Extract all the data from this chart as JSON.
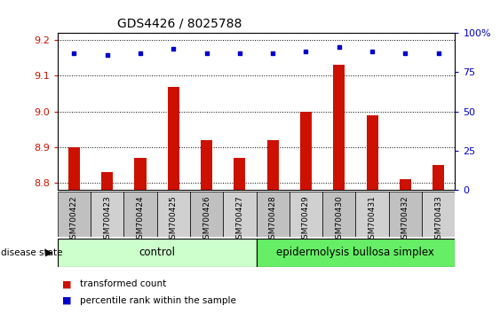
{
  "title": "GDS4426 / 8025788",
  "samples": [
    "GSM700422",
    "GSM700423",
    "GSM700424",
    "GSM700425",
    "GSM700426",
    "GSM700427",
    "GSM700428",
    "GSM700429",
    "GSM700430",
    "GSM700431",
    "GSM700432",
    "GSM700433"
  ],
  "bar_values": [
    8.9,
    8.83,
    8.87,
    9.07,
    8.92,
    8.87,
    8.92,
    9.0,
    9.13,
    8.99,
    8.81,
    8.85
  ],
  "percentile_values": [
    87,
    86,
    87,
    90,
    87,
    87,
    87,
    88,
    91,
    88,
    87,
    87
  ],
  "ylim_left": [
    8.78,
    9.22
  ],
  "ylim_right": [
    0,
    100
  ],
  "yticks_left": [
    8.8,
    8.9,
    9.0,
    9.1,
    9.2
  ],
  "yticks_right": [
    0,
    25,
    50,
    75,
    100
  ],
  "bar_color": "#cc1100",
  "dot_color": "#0000cc",
  "n_control": 6,
  "n_ebs": 6,
  "control_label": "control",
  "ebs_label": "epidermolysis bullosa simplex",
  "disease_label": "disease state",
  "legend_bar_label": "transformed count",
  "legend_dot_label": "percentile rank within the sample",
  "control_color": "#ccffcc",
  "ebs_color": "#66ee66",
  "background_color": "#ffffff",
  "title_fontsize": 10,
  "tick_fontsize": 8,
  "sample_fontsize": 6.5
}
